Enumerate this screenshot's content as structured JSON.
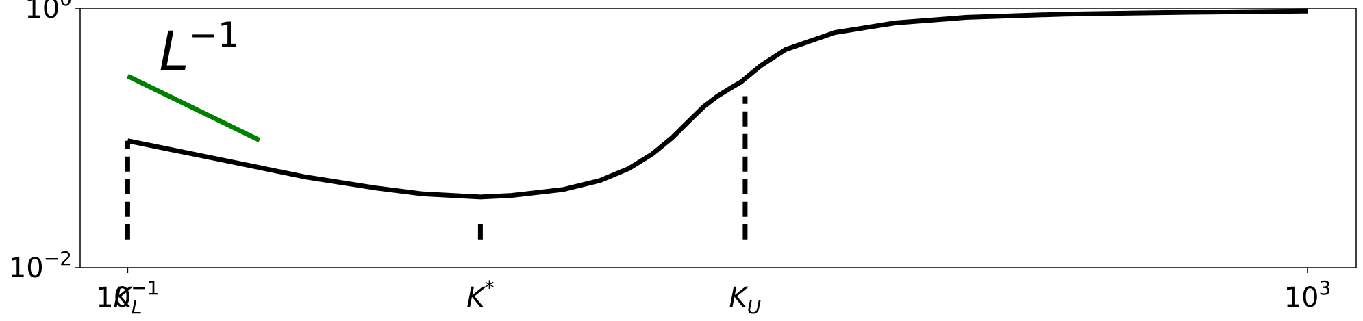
{
  "chart_data": {
    "type": "line",
    "title": "",
    "xlabel": "",
    "ylabel": "",
    "xscale": "log",
    "yscale": "log",
    "xlim": [
      0.069,
      1462
    ],
    "ylim": [
      0.01,
      1.0
    ],
    "grid": false,
    "legend": "none",
    "yticks": [
      {
        "value": 0.01,
        "base": "10",
        "exp": "−2"
      },
      {
        "value": 1.0,
        "base": "10",
        "exp": "0"
      }
    ],
    "xticks": [
      {
        "value": 0.1,
        "base": "10",
        "exp": "−1"
      },
      {
        "value": 1000,
        "base": "10",
        "exp": "3"
      }
    ],
    "marker_labels": [
      {
        "name": "K_L",
        "x": 0.1,
        "main": "K",
        "sub": "L",
        "sup": ""
      },
      {
        "name": "K*",
        "x": 1.57,
        "main": "K",
        "sub": "",
        "sup": "*"
      },
      {
        "name": "K_U",
        "x": 12.4,
        "main": "K",
        "sub": "U",
        "sup": ""
      }
    ],
    "series": [
      {
        "color": "#000000",
        "style": "solid",
        "x": [
          0.1,
          0.2,
          0.4,
          0.7,
          1.0,
          1.57,
          2.0,
          3.0,
          4.0,
          5.0,
          6.0,
          7.0,
          8.0,
          9.0,
          10.0,
          11.0,
          12.0,
          14.0,
          17.0,
          25.0,
          40.0,
          70.0,
          150.0,
          400.0,
          1000.0
        ],
        "y": [
          0.095,
          0.069,
          0.05,
          0.041,
          0.037,
          0.035,
          0.036,
          0.04,
          0.047,
          0.058,
          0.075,
          0.1,
          0.135,
          0.175,
          0.21,
          0.24,
          0.27,
          0.36,
          0.48,
          0.65,
          0.77,
          0.85,
          0.9,
          0.93,
          0.95
        ]
      },
      {
        "color": "#008000",
        "style": "solid",
        "x": [
          0.1,
          0.28
        ],
        "y": [
          0.3,
          0.096
        ]
      }
    ],
    "vlines": [
      {
        "x": 0.1,
        "y": [
          0.0165,
          0.095
        ],
        "color": "#000000",
        "style": "dashed"
      },
      {
        "x": 1.57,
        "y": [
          0.0165,
          0.0225
        ],
        "color": "#000000",
        "style": "dashed"
      },
      {
        "x": 12.4,
        "y": [
          0.0165,
          0.21
        ],
        "color": "#000000",
        "style": "dashed"
      }
    ],
    "annotations": [
      {
        "base": "L",
        "exp": "−1",
        "x": 0.175,
        "y": 0.47
      }
    ]
  }
}
